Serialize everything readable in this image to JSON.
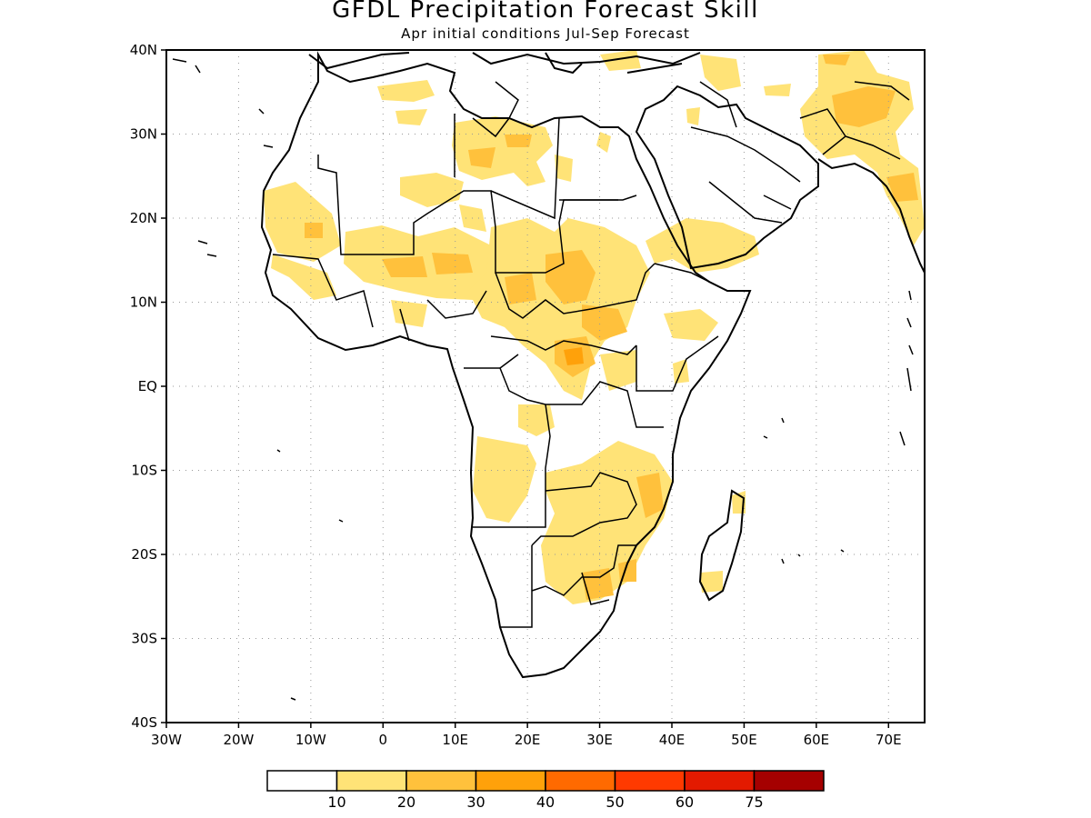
{
  "title": "GFDL Precipitation Forecast Skill",
  "subtitle": "Apr initial conditions  Jul-Sep Forecast",
  "map": {
    "lon_range": [
      -30,
      75
    ],
    "lat_range": [
      -40,
      40
    ],
    "gridlines": "dotted",
    "lat_ticks": [
      {
        "value": 40,
        "label": "40N"
      },
      {
        "value": 30,
        "label": "30N"
      },
      {
        "value": 20,
        "label": "20N"
      },
      {
        "value": 10,
        "label": "10N"
      },
      {
        "value": 0,
        "label": "EQ"
      },
      {
        "value": -10,
        "label": "10S"
      },
      {
        "value": -20,
        "label": "20S"
      },
      {
        "value": -30,
        "label": "30S"
      },
      {
        "value": -40,
        "label": "40S"
      }
    ],
    "lon_ticks": [
      {
        "value": -30,
        "label": "30W"
      },
      {
        "value": -20,
        "label": "20W"
      },
      {
        "value": -10,
        "label": "10W"
      },
      {
        "value": 0,
        "label": "0"
      },
      {
        "value": 10,
        "label": "10E"
      },
      {
        "value": 20,
        "label": "20E"
      },
      {
        "value": 30,
        "label": "30E"
      },
      {
        "value": 40,
        "label": "40E"
      },
      {
        "value": 50,
        "label": "50E"
      },
      {
        "value": 60,
        "label": "60E"
      },
      {
        "value": 70,
        "label": "70E"
      }
    ]
  },
  "colorbar": {
    "colors": [
      "#ffffff",
      "#ffe377",
      "#ffc13c",
      "#ffa10a",
      "#ff6a00",
      "#ff3a00",
      "#e31a00",
      "#a50000"
    ],
    "labels": [
      "10",
      "20",
      "30",
      "40",
      "50",
      "60",
      "75"
    ]
  },
  "skill_colors": {
    "c1": "#ffe377",
    "c2": "#ffc13c",
    "c3": "#ffa10a"
  }
}
